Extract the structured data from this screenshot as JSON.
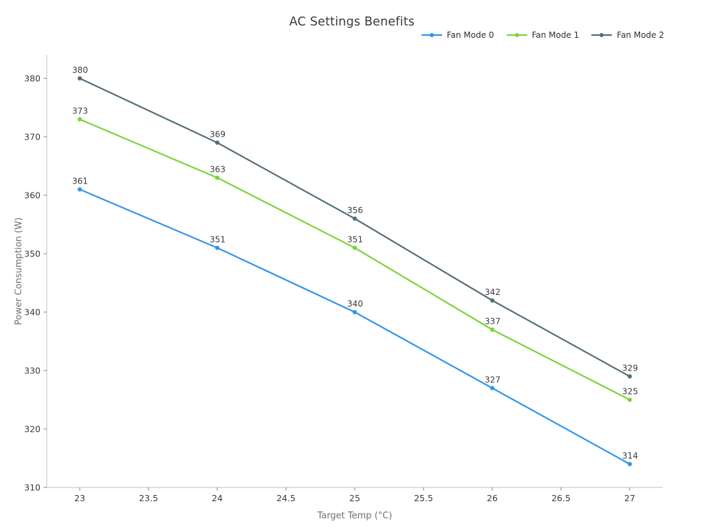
{
  "chart_data": {
    "type": "line",
    "title": "AC Settings Benefits",
    "xlabel": "Target Temp (°C)",
    "ylabel": "Power Consumption (W)",
    "x": [
      23,
      24,
      25,
      26,
      27
    ],
    "series": [
      {
        "name": "Fan Mode 0",
        "color": "#2F94EC",
        "values": [
          361,
          351,
          340,
          327,
          314
        ]
      },
      {
        "name": "Fan Mode 1",
        "color": "#7BD338",
        "values": [
          373,
          363,
          351,
          337,
          325
        ]
      },
      {
        "name": "Fan Mode 2",
        "color": "#556E79",
        "values": [
          380,
          369,
          356,
          342,
          329
        ]
      }
    ],
    "point_labels": {
      "Fan Mode 0": [
        "361",
        "351",
        "340",
        "327",
        "314"
      ],
      "Fan Mode 1": [
        "373",
        "363",
        "351",
        "337",
        "325"
      ],
      "Fan Mode 2": [
        "380",
        "369",
        "356",
        "342",
        "329"
      ]
    },
    "xtick_values": [
      23,
      23.5,
      24,
      24.5,
      25,
      25.5,
      26,
      26.5,
      27
    ],
    "xtick_labels": [
      "23",
      "23.5",
      "24",
      "24.5",
      "25",
      "25.5",
      "26",
      "26.5",
      "27"
    ],
    "ytick_values": [
      310,
      320,
      330,
      340,
      350,
      360,
      370,
      380
    ],
    "ytick_labels": [
      "310",
      "320",
      "330",
      "340",
      "350",
      "360",
      "370",
      "380"
    ],
    "xlim": [
      22.76,
      27.24
    ],
    "ylim": [
      310,
      384
    ],
    "grid": false,
    "legend_position": "top-right",
    "styles": {
      "spine_color": "#cccccc",
      "tick_color": "#8a8a8a",
      "title_color": "#3a3a3a",
      "tick_label_color": "#3a3a3a",
      "axis_title_color": "#707070",
      "background": "#ffffff"
    }
  }
}
